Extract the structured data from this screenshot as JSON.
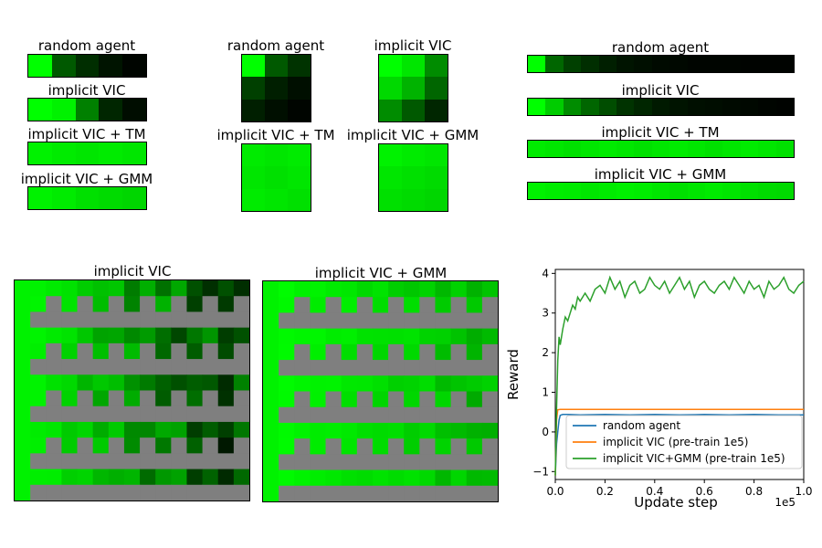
{
  "panels_1d_left": {
    "cols": 5,
    "rows": [
      {
        "label": "random agent",
        "cells": [
          1.0,
          0.35,
          0.18,
          0.08,
          0.02
        ]
      },
      {
        "label": "implicit VIC",
        "cells": [
          1.0,
          0.95,
          0.5,
          0.15,
          0.05
        ]
      },
      {
        "label": "implicit VIC + TM",
        "cells": [
          0.95,
          0.92,
          0.9,
          0.92,
          0.9
        ]
      },
      {
        "label": "implicit VIC + GMM",
        "cells": [
          0.95,
          0.92,
          0.88,
          0.86,
          0.84
        ]
      }
    ]
  },
  "panels_2d": [
    {
      "label": "random agent",
      "cells": [
        [
          1.0,
          0.35,
          0.2
        ],
        [
          0.25,
          0.12,
          0.06
        ],
        [
          0.12,
          0.06,
          0.02
        ]
      ]
    },
    {
      "label": "implicit VIC",
      "cells": [
        [
          1.0,
          0.9,
          0.55
        ],
        [
          0.85,
          0.7,
          0.4
        ],
        [
          0.55,
          0.35,
          0.15
        ]
      ]
    },
    {
      "label": "implicit VIC + TM",
      "cells": [
        [
          0.92,
          0.9,
          0.92
        ],
        [
          0.9,
          0.88,
          0.9
        ],
        [
          0.92,
          0.9,
          0.88
        ]
      ]
    },
    {
      "label": "implicit VIC + GMM",
      "cells": [
        [
          0.95,
          0.92,
          0.9
        ],
        [
          0.9,
          0.88,
          0.86
        ],
        [
          0.88,
          0.86,
          0.84
        ]
      ]
    }
  ],
  "panels_1d_right": {
    "cols": 15,
    "rows": [
      {
        "label": "random agent",
        "cells": [
          1.0,
          0.4,
          0.25,
          0.18,
          0.12,
          0.08,
          0.06,
          0.04,
          0.03,
          0.02,
          0.02,
          0.02,
          0.01,
          0.01,
          0.01
        ]
      },
      {
        "label": "implicit VIC",
        "cells": [
          1.0,
          0.8,
          0.55,
          0.4,
          0.3,
          0.2,
          0.15,
          0.1,
          0.08,
          0.06,
          0.05,
          0.04,
          0.03,
          0.02,
          0.01
        ]
      },
      {
        "label": "implicit VIC + TM",
        "cells": [
          0.92,
          0.9,
          0.88,
          0.9,
          0.92,
          0.9,
          0.88,
          0.9,
          0.92,
          0.9,
          0.88,
          0.9,
          0.92,
          0.9,
          0.88
        ]
      },
      {
        "label": "implicit VIC + GMM",
        "cells": [
          0.95,
          0.93,
          0.92,
          0.9,
          0.92,
          0.94,
          0.93,
          0.9,
          0.88,
          0.9,
          0.92,
          0.9,
          0.88,
          0.86,
          0.85
        ]
      }
    ]
  },
  "mazes": [
    {
      "label": "implicit VIC",
      "darkness": 1.0
    },
    {
      "label": "implicit VIC + GMM",
      "darkness": 0.35
    }
  ],
  "colors": {
    "green": "#00ff00",
    "wall": "#7f7f7f",
    "random": "#1f77b4",
    "vic": "#ff7f0e",
    "gmm": "#2ca02c"
  },
  "chart_data": {
    "type": "line",
    "xlabel": "Update step",
    "ylabel": "Reward",
    "x_multiplier": "1e5",
    "xlim": [
      0.0,
      1.0
    ],
    "ylim": [
      -1.2,
      4.1
    ],
    "xticks": [
      0.0,
      0.2,
      0.4,
      0.6,
      0.8,
      1.0
    ],
    "yticks": [
      -1,
      0,
      1,
      2,
      3,
      4
    ],
    "legend_placement": "lower-right",
    "series": [
      {
        "name": "random agent",
        "color": "#1f77b4",
        "x": [
          0.0,
          0.005,
          0.01,
          0.015,
          0.02,
          0.03,
          0.05,
          0.1,
          0.2,
          0.3,
          0.4,
          0.5,
          0.6,
          0.7,
          0.8,
          0.9,
          1.0
        ],
        "y": [
          -1.1,
          -0.3,
          0.0,
          0.3,
          0.42,
          0.44,
          0.44,
          0.43,
          0.44,
          0.43,
          0.44,
          0.43,
          0.44,
          0.43,
          0.44,
          0.43,
          0.43
        ]
      },
      {
        "name": "implicit VIC (pre-train 1e5)",
        "color": "#ff7f0e",
        "x": [
          0.0,
          0.005,
          0.01,
          0.02,
          0.05,
          0.1,
          0.2,
          0.4,
          0.6,
          0.8,
          1.0
        ],
        "y": [
          -1.1,
          0.3,
          0.56,
          0.57,
          0.57,
          0.57,
          0.57,
          0.57,
          0.57,
          0.57,
          0.57
        ]
      },
      {
        "name": "implicit VIC+GMM (pre-train 1e5)",
        "color": "#2ca02c",
        "x": [
          0.0,
          0.005,
          0.01,
          0.015,
          0.02,
          0.03,
          0.04,
          0.05,
          0.06,
          0.07,
          0.08,
          0.09,
          0.1,
          0.12,
          0.14,
          0.16,
          0.18,
          0.2,
          0.22,
          0.24,
          0.26,
          0.28,
          0.3,
          0.32,
          0.34,
          0.36,
          0.38,
          0.4,
          0.42,
          0.44,
          0.46,
          0.48,
          0.5,
          0.52,
          0.54,
          0.56,
          0.58,
          0.6,
          0.62,
          0.64,
          0.66,
          0.68,
          0.7,
          0.72,
          0.74,
          0.76,
          0.78,
          0.8,
          0.82,
          0.84,
          0.86,
          0.88,
          0.9,
          0.92,
          0.94,
          0.96,
          0.98,
          1.0
        ],
        "y": [
          -1.1,
          0.6,
          1.8,
          2.4,
          2.2,
          2.6,
          2.9,
          2.8,
          3.0,
          3.2,
          3.1,
          3.4,
          3.3,
          3.5,
          3.3,
          3.6,
          3.7,
          3.5,
          3.9,
          3.6,
          3.8,
          3.4,
          3.7,
          3.8,
          3.5,
          3.6,
          3.9,
          3.7,
          3.6,
          3.8,
          3.5,
          3.7,
          3.9,
          3.6,
          3.8,
          3.4,
          3.7,
          3.8,
          3.6,
          3.5,
          3.7,
          3.8,
          3.6,
          3.9,
          3.7,
          3.5,
          3.8,
          3.6,
          3.7,
          3.4,
          3.8,
          3.6,
          3.7,
          3.9,
          3.6,
          3.5,
          3.7,
          3.8
        ]
      }
    ]
  }
}
